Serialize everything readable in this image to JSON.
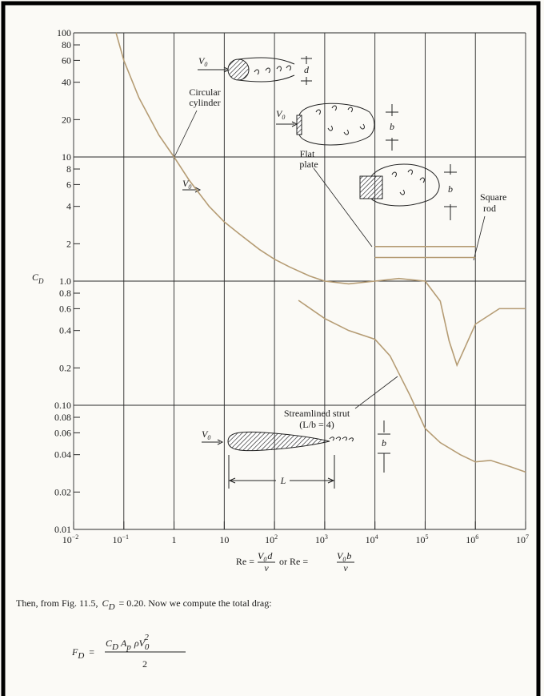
{
  "chart_data": {
    "type": "line",
    "xscale": "log",
    "yscale": "log",
    "xlim": [
      0.01,
      10000000
    ],
    "ylim": [
      0.01,
      100
    ],
    "xticks": [
      {
        "value": 0.01,
        "label": "10",
        "exp": "−2"
      },
      {
        "value": 0.1,
        "label": "10",
        "exp": "−1"
      },
      1,
      10,
      {
        "value": 100,
        "label": "10",
        "exp": "2"
      },
      {
        "value": 1000,
        "label": "10",
        "exp": "3"
      },
      {
        "value": 10000,
        "label": "10",
        "exp": "4"
      },
      {
        "value": 100000,
        "label": "10",
        "exp": "5"
      },
      {
        "value": 1000000,
        "label": "10",
        "exp": "6"
      },
      {
        "value": 10000000,
        "label": "10",
        "exp": "7"
      }
    ],
    "yticks": [
      0.01,
      0.02,
      0.04,
      0.06,
      0.08,
      {
        "value": 0.1,
        "label": "0.10"
      },
      0.2,
      0.4,
      0.6,
      0.8,
      {
        "value": 1,
        "label": "1.0"
      },
      2,
      4,
      6,
      8,
      10,
      20,
      40,
      60,
      80,
      100
    ],
    "grid": true,
    "ylabel": "C",
    "ylabel_sub": "D",
    "xlabel": {
      "lhs1": "Re =",
      "num1": "V",
      "num1_sub": "0",
      "num1_tail": "d",
      "den1": "ν",
      "mid": "or Re =",
      "num2": "V",
      "num2_sub": "0",
      "num2_tail": "b",
      "den2": "ν"
    },
    "series": [
      {
        "color": "#b59c74",
        "x": [
          0.07,
          0.1,
          0.2,
          0.5,
          1,
          2,
          5,
          10,
          20,
          50,
          100,
          200,
          500,
          1000,
          3000,
          10000,
          30000,
          100000,
          200000,
          300000,
          430000,
          1000000,
          3000000,
          10000000
        ],
        "values": [
          100,
          60,
          30,
          15,
          10,
          6.5,
          4,
          3,
          2.4,
          1.8,
          1.5,
          1.3,
          1.1,
          1.0,
          0.95,
          1.0,
          1.05,
          1.0,
          0.69,
          0.33,
          0.21,
          0.45,
          0.6,
          0.6
        ]
      },
      {
        "color": "#b59c74",
        "x": [
          300,
          1000,
          3000,
          10000,
          20000,
          50000,
          100000,
          200000,
          500000,
          1000000,
          2000000,
          5000000,
          10000000
        ],
        "values": [
          0.7,
          0.5,
          0.4,
          0.34,
          0.25,
          0.12,
          0.065,
          0.05,
          0.04,
          0.035,
          0.036,
          0.032,
          0.029
        ]
      },
      {
        "color": "#b59c74",
        "x": [
          10000,
          1000000
        ],
        "values": [
          1.9,
          1.9
        ]
      },
      {
        "color": "#b59c74",
        "x": [
          10000,
          1000000
        ],
        "values": [
          1.55,
          1.55
        ]
      }
    ],
    "annotations": {
      "circular_1": "Circular",
      "circular_2": "cylinder",
      "flat_1": "Flat",
      "flat_2": "plate",
      "square_1": "Square",
      "square_2": "rod",
      "strut_1": "Streamlined strut",
      "strut_2": "(L/b = 4)"
    },
    "sketch_labels": {
      "v": "V",
      "v_sub": "0",
      "d": "d",
      "b": "b",
      "L": "L"
    }
  },
  "paragraph": {
    "before": "Then, from Fig. 11.5,",
    "c": "C",
    "c_sub": "D",
    "after": "= 0.20. Now we compute the total drag:"
  },
  "formula": {
    "f": "F",
    "f_sub": "D",
    "eq": "=",
    "c": "C",
    "c_sub": "D",
    "a": "A",
    "a_sub": "p",
    "rv": "ρV",
    "v_sub": "0",
    "v_sup": "2",
    "den": "2"
  }
}
